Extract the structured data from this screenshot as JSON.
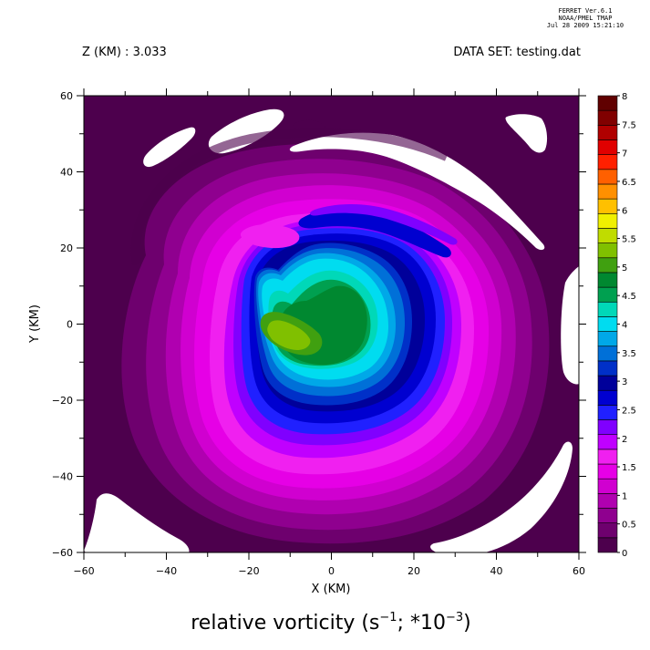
{
  "header": {
    "ferret_lines": [
      "FERRET  Ver.6.1",
      "NOAA/PMEL TMAP",
      "Jul 28 2009 15:21:10"
    ],
    "z_label": "Z (KM) : 3.033",
    "dataset_label": "DATA SET: testing.dat"
  },
  "chart_data": {
    "type": "heatmap",
    "title": "",
    "xlabel": "X (KM)",
    "ylabel": "Y (KM)",
    "caption_prefix": "relative vorticity (s",
    "caption_exp1": "−1",
    "caption_middle": "; *10",
    "caption_exp2": "−3",
    "caption_suffix": ")",
    "xlim": [
      -60,
      60
    ],
    "ylim": [
      -60,
      60
    ],
    "x_ticks": [
      -60,
      -40,
      -20,
      0,
      20,
      40,
      60
    ],
    "y_ticks": [
      -60,
      -40,
      -20,
      0,
      20,
      40,
      60
    ],
    "x_tick_labels": [
      "−60",
      "−40",
      "−20",
      "0",
      "20",
      "40",
      "60"
    ],
    "y_tick_labels": [
      "−60",
      "−40",
      "−20",
      "0",
      "20",
      "40",
      "60"
    ],
    "colorbar": {
      "levels": [
        0,
        0.5,
        1,
        1.5,
        2,
        2.5,
        3,
        3.5,
        4,
        4.5,
        5,
        5.5,
        6,
        6.5,
        7,
        7.5,
        8
      ],
      "labels": [
        "0",
        "0.5",
        "1",
        "1.5",
        "2",
        "2.5",
        "3",
        "3.5",
        "4",
        "4.5",
        "5",
        "5.5",
        "6",
        "6.5",
        "7",
        "7.5",
        "8"
      ],
      "colors": [
        "#4d004d",
        "#6e006e",
        "#8f008f",
        "#b000b0",
        "#d000d0",
        "#e600e6",
        "#f020f0",
        "#c000ff",
        "#8000ff",
        "#2020ff",
        "#0000d0",
        "#00009a",
        "#0030c8",
        "#0070d8",
        "#00a8e8",
        "#00dcf0",
        "#00d8b8",
        "#00a050",
        "#008830",
        "#40a010",
        "#80c000",
        "#c0dc00",
        "#f0f000",
        "#ffc000",
        "#ff9000",
        "#ff6000",
        "#ff2000",
        "#e00000",
        "#b00000",
        "#800000",
        "#600000"
      ]
    },
    "field": {
      "vortex_center": [
        2,
        0
      ],
      "peak_value": 5.3,
      "features": [
        {
          "name": "core-green",
          "center": [
            0,
            3
          ],
          "value": 4.7
        },
        {
          "name": "core-yellow",
          "center": [
            -12,
            -3
          ],
          "value": 5.3
        },
        {
          "name": "cyan-ring",
          "center": [
            2,
            0
          ],
          "value": 3.8
        },
        {
          "name": "blue-ring",
          "center": [
            2,
            0
          ],
          "value": 2.3
        },
        {
          "name": "magenta-ring",
          "center": [
            0,
            0
          ],
          "value": 1.1
        }
      ],
      "missing_regions": [
        {
          "name": "blank-nw-1",
          "center": [
            -44,
            50
          ]
        },
        {
          "name": "blank-nw-2",
          "center": [
            -18,
            50
          ]
        },
        {
          "name": "blank-ne",
          "center": [
            45,
            30
          ]
        },
        {
          "name": "blank-ne-2",
          "center": [
            47,
            52
          ]
        },
        {
          "name": "blank-e",
          "center": [
            59,
            5
          ]
        },
        {
          "name": "blank-sw",
          "center": [
            -48,
            -52
          ]
        },
        {
          "name": "blank-se",
          "center": [
            46,
            -46
          ]
        }
      ]
    }
  }
}
